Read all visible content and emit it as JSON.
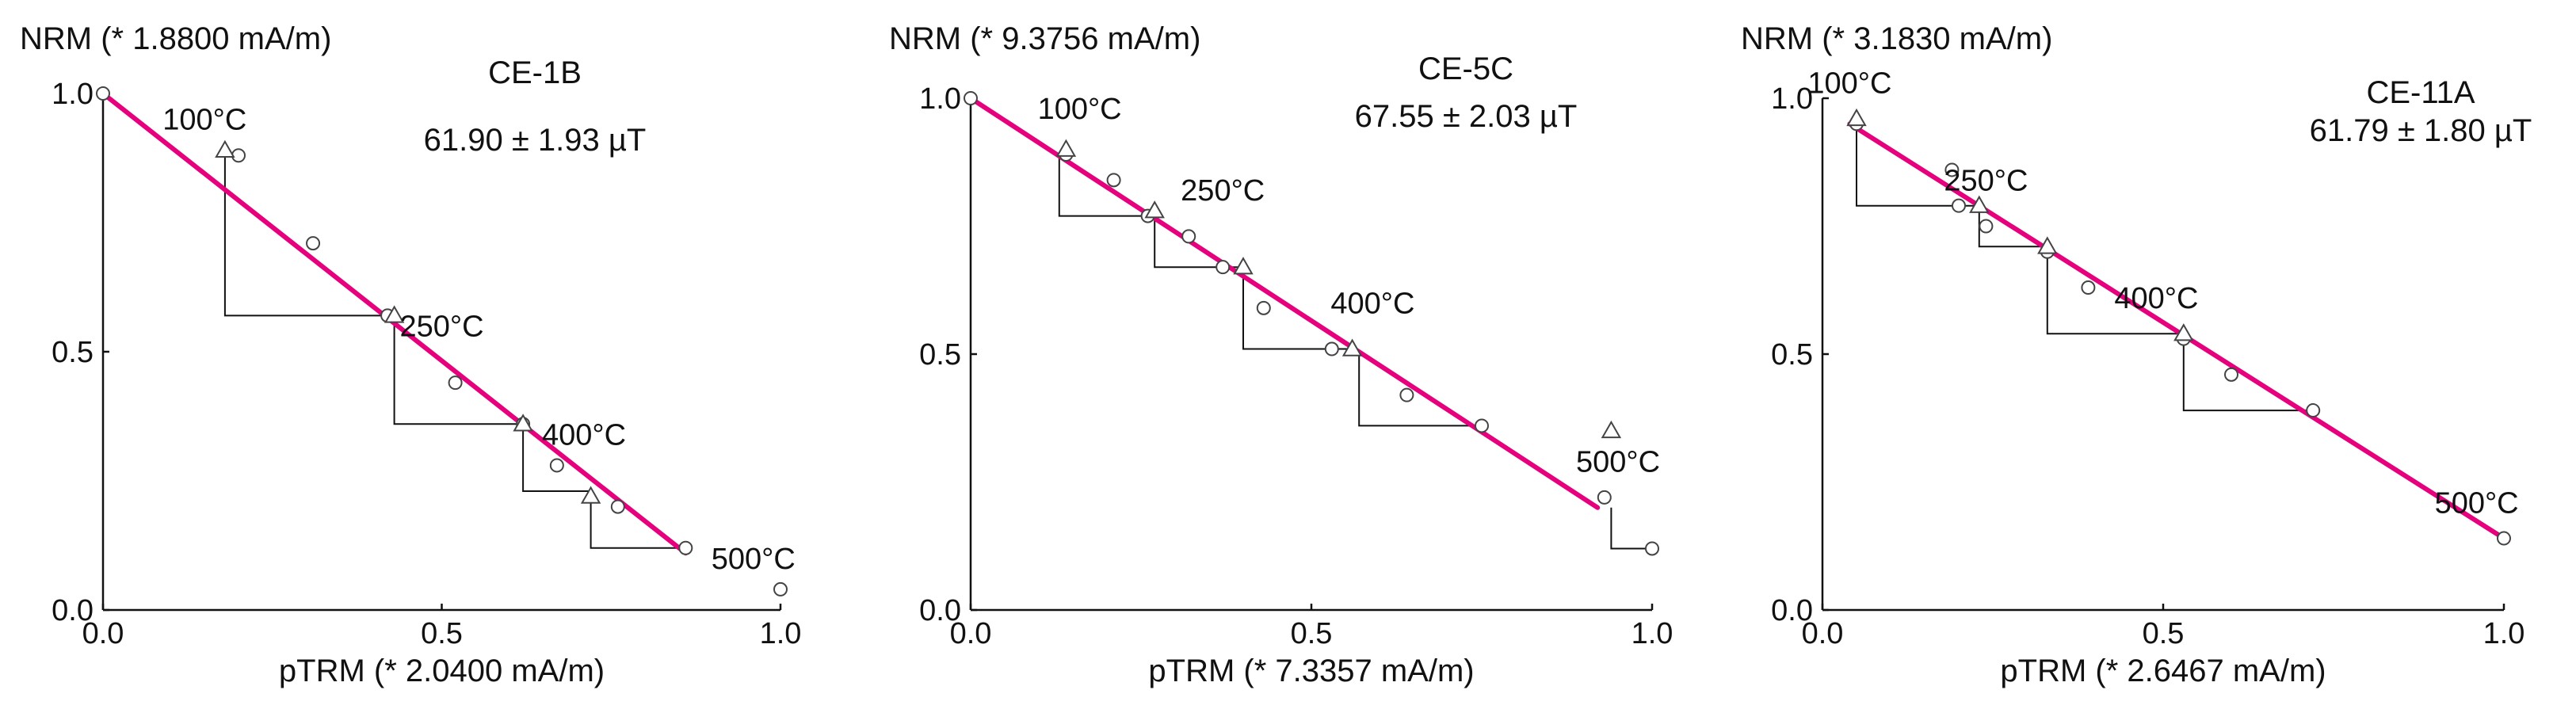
{
  "colors": {
    "fit_line": "#e6007e",
    "axes": "#111111",
    "markers": "#444444"
  },
  "chart_data": [
    {
      "type": "scatter",
      "title": "CE-1B",
      "subtitle": "61.90 ± 1.93 µT",
      "ylabel": "NRM (* 1.8800 mA/m)",
      "xlabel": "pTRM (* 2.0400 mA/m)",
      "xlim": [
        0,
        1.0
      ],
      "ylim": [
        0,
        1.0
      ],
      "xticks": [
        0.0,
        0.5,
        1.0
      ],
      "yticks": [
        0.0,
        0.5,
        1.0
      ],
      "xtick_labels": [
        "0.0",
        "0.5",
        "1.0"
      ],
      "ytick_labels": [
        "0.0",
        "0.5",
        "1.0"
      ],
      "points": [
        {
          "x": 0.0,
          "y": 1.0
        },
        {
          "x": 0.2,
          "y": 0.88
        },
        {
          "x": 0.31,
          "y": 0.71
        },
        {
          "x": 0.42,
          "y": 0.57
        },
        {
          "x": 0.52,
          "y": 0.44
        },
        {
          "x": 0.62,
          "y": 0.36
        },
        {
          "x": 0.67,
          "y": 0.28
        },
        {
          "x": 0.76,
          "y": 0.2
        },
        {
          "x": 0.86,
          "y": 0.12
        },
        {
          "x": 1.0,
          "y": 0.04
        }
      ],
      "checks": [
        {
          "x": 0.18,
          "y": 0.89
        },
        {
          "x": 0.43,
          "y": 0.57
        },
        {
          "x": 0.62,
          "y": 0.36
        },
        {
          "x": 0.72,
          "y": 0.22
        }
      ],
      "steps": [
        [
          [
            0.18,
            0.89
          ],
          [
            0.18,
            0.57
          ],
          [
            0.43,
            0.57
          ]
        ],
        [
          [
            0.43,
            0.57
          ],
          [
            0.43,
            0.36
          ],
          [
            0.62,
            0.36
          ]
        ],
        [
          [
            0.62,
            0.36
          ],
          [
            0.62,
            0.23
          ],
          [
            0.72,
            0.23
          ]
        ],
        [
          [
            0.72,
            0.22
          ],
          [
            0.72,
            0.12
          ],
          [
            0.86,
            0.12
          ]
        ]
      ],
      "fit_line": [
        [
          0.0,
          1.0
        ],
        [
          0.86,
          0.11
        ]
      ],
      "temp_labels": [
        {
          "text": "100°C",
          "x": 0.15,
          "y": 0.93
        },
        {
          "text": "250°C",
          "x": 0.5,
          "y": 0.53
        },
        {
          "text": "400°C",
          "x": 0.71,
          "y": 0.32
        },
        {
          "text": "500°C",
          "x": 0.96,
          "y": 0.08
        }
      ]
    },
    {
      "type": "scatter",
      "title": "CE-5C",
      "subtitle": "67.55 ± 2.03 µT",
      "ylabel": "NRM (* 9.3756 mA/m)",
      "xlabel": "pTRM (* 7.3357 mA/m)",
      "xlim": [
        0,
        1.0
      ],
      "ylim": [
        0,
        1.0
      ],
      "xticks": [
        0.0,
        0.5,
        1.0
      ],
      "yticks": [
        0.0,
        0.5,
        1.0
      ],
      "xtick_labels": [
        "0.0",
        "0.5",
        "1.0"
      ],
      "ytick_labels": [
        "0.0",
        "0.5",
        "1.0"
      ],
      "points": [
        {
          "x": 0.0,
          "y": 1.0
        },
        {
          "x": 0.14,
          "y": 0.89
        },
        {
          "x": 0.21,
          "y": 0.84
        },
        {
          "x": 0.26,
          "y": 0.77
        },
        {
          "x": 0.32,
          "y": 0.73
        },
        {
          "x": 0.37,
          "y": 0.67
        },
        {
          "x": 0.43,
          "y": 0.59
        },
        {
          "x": 0.53,
          "y": 0.51
        },
        {
          "x": 0.64,
          "y": 0.42
        },
        {
          "x": 0.75,
          "y": 0.36
        },
        {
          "x": 0.93,
          "y": 0.22
        },
        {
          "x": 1.0,
          "y": 0.12
        }
      ],
      "checks": [
        {
          "x": 0.14,
          "y": 0.9
        },
        {
          "x": 0.27,
          "y": 0.78
        },
        {
          "x": 0.4,
          "y": 0.67
        },
        {
          "x": 0.56,
          "y": 0.51
        },
        {
          "x": 0.94,
          "y": 0.35
        }
      ],
      "steps": [
        [
          [
            0.13,
            0.89
          ],
          [
            0.13,
            0.77
          ],
          [
            0.26,
            0.77
          ]
        ],
        [
          [
            0.27,
            0.77
          ],
          [
            0.27,
            0.67
          ],
          [
            0.4,
            0.67
          ]
        ],
        [
          [
            0.4,
            0.66
          ],
          [
            0.4,
            0.51
          ],
          [
            0.56,
            0.51
          ]
        ],
        [
          [
            0.57,
            0.5
          ],
          [
            0.57,
            0.36
          ],
          [
            0.75,
            0.36
          ]
        ],
        [
          [
            0.94,
            0.2
          ],
          [
            0.94,
            0.12
          ],
          [
            1.0,
            0.12
          ]
        ]
      ],
      "fit_line": [
        [
          0.0,
          1.0
        ],
        [
          0.92,
          0.2
        ]
      ],
      "temp_labels": [
        {
          "text": "100°C",
          "x": 0.16,
          "y": 0.96
        },
        {
          "text": "250°C",
          "x": 0.37,
          "y": 0.8
        },
        {
          "text": "400°C",
          "x": 0.59,
          "y": 0.58
        },
        {
          "text": "500°C",
          "x": 0.95,
          "y": 0.27
        }
      ]
    },
    {
      "type": "scatter",
      "title": "CE-11A",
      "subtitle": "61.79 ± 1.80 µT",
      "ylabel": "NRM (* 3.1830 mA/m)",
      "xlabel": "pTRM (* 2.6467 mA/m)",
      "xlim": [
        0,
        1.0
      ],
      "ylim": [
        0,
        1.0
      ],
      "xticks": [
        0.0,
        0.5,
        1.0
      ],
      "yticks": [
        0.0,
        0.5,
        1.0
      ],
      "xtick_labels": [
        "0.0",
        "0.5",
        "1.0"
      ],
      "ytick_labels": [
        "0.0",
        "0.5",
        "1.0"
      ],
      "points": [
        {
          "x": 0.05,
          "y": 0.95
        },
        {
          "x": 0.19,
          "y": 0.86
        },
        {
          "x": 0.2,
          "y": 0.79
        },
        {
          "x": 0.24,
          "y": 0.75
        },
        {
          "x": 0.33,
          "y": 0.7
        },
        {
          "x": 0.39,
          "y": 0.63
        },
        {
          "x": 0.53,
          "y": 0.53
        },
        {
          "x": 0.6,
          "y": 0.46
        },
        {
          "x": 0.72,
          "y": 0.39
        },
        {
          "x": 1.0,
          "y": 0.14
        }
      ],
      "checks": [
        {
          "x": 0.05,
          "y": 0.96
        },
        {
          "x": 0.23,
          "y": 0.79
        },
        {
          "x": 0.33,
          "y": 0.71
        },
        {
          "x": 0.53,
          "y": 0.54
        }
      ],
      "steps": [
        [
          [
            0.05,
            0.95
          ],
          [
            0.05,
            0.79
          ],
          [
            0.23,
            0.79
          ]
        ],
        [
          [
            0.23,
            0.78
          ],
          [
            0.23,
            0.71
          ],
          [
            0.33,
            0.71
          ]
        ],
        [
          [
            0.33,
            0.7
          ],
          [
            0.33,
            0.54
          ],
          [
            0.53,
            0.54
          ]
        ],
        [
          [
            0.53,
            0.53
          ],
          [
            0.53,
            0.39
          ],
          [
            0.72,
            0.39
          ]
        ]
      ],
      "fit_line": [
        [
          0.04,
          0.95
        ],
        [
          1.0,
          0.14
        ]
      ],
      "temp_labels": [
        {
          "text": "100°C",
          "x": 0.04,
          "y": 1.01
        },
        {
          "text": "250°C",
          "x": 0.24,
          "y": 0.82
        },
        {
          "text": "400°C",
          "x": 0.49,
          "y": 0.59
        },
        {
          "text": "500°C",
          "x": 0.96,
          "y": 0.19
        }
      ]
    }
  ]
}
